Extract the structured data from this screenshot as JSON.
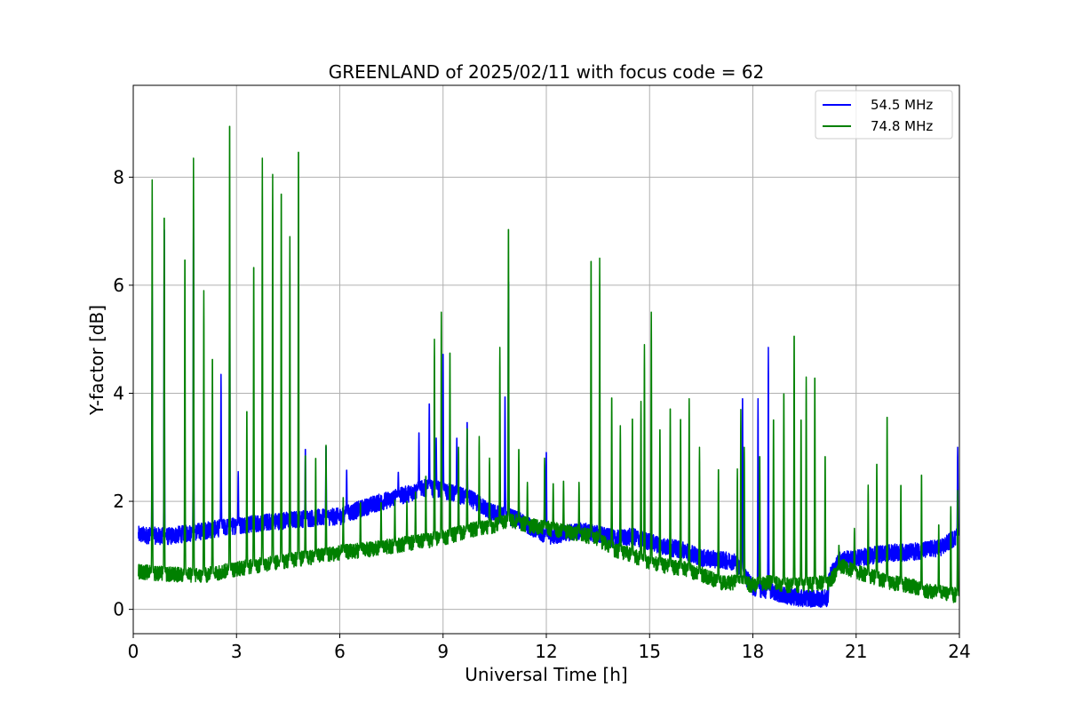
{
  "chart_data": {
    "type": "line",
    "title": "GREENLAND of 2025/02/11 with focus code = 62",
    "xlabel": "Universal Time [h]",
    "ylabel": "Y-factor [dB]",
    "xlim": [
      0,
      24
    ],
    "ylim": [
      -0.45,
      9.7
    ],
    "xticks": [
      0,
      3,
      6,
      9,
      12,
      15,
      18,
      21,
      24
    ],
    "yticks": [
      0,
      2,
      4,
      6,
      8
    ],
    "grid": true,
    "legend_position": "top-right",
    "series": [
      {
        "name": "54.5 MHz",
        "color": "#0000ff",
        "baseline": [
          [
            0.15,
            1.38
          ],
          [
            1,
            1.35
          ],
          [
            2,
            1.45
          ],
          [
            3,
            1.55
          ],
          [
            4,
            1.62
          ],
          [
            5,
            1.68
          ],
          [
            6,
            1.72
          ],
          [
            7,
            1.95
          ],
          [
            7.8,
            2.1
          ],
          [
            8.5,
            2.25
          ],
          [
            9,
            2.2
          ],
          [
            9.8,
            2.05
          ],
          [
            10.4,
            1.8
          ],
          [
            11,
            1.7
          ],
          [
            11.5,
            1.55
          ],
          [
            12,
            1.35
          ],
          [
            12.5,
            1.4
          ],
          [
            13,
            1.45
          ],
          [
            13.5,
            1.4
          ],
          [
            14,
            1.3
          ],
          [
            14.5,
            1.35
          ],
          [
            15,
            1.25
          ],
          [
            15.5,
            1.15
          ],
          [
            16,
            1.1
          ],
          [
            16.5,
            0.95
          ],
          [
            17,
            0.92
          ],
          [
            17.5,
            0.88
          ],
          [
            18,
            0.4
          ],
          [
            18.5,
            0.35
          ],
          [
            19,
            0.25
          ],
          [
            19.5,
            0.2
          ],
          [
            20.2,
            0.2
          ],
          [
            20.2,
            0.55
          ],
          [
            20.5,
            0.9
          ],
          [
            21,
            0.95
          ],
          [
            21.5,
            1.0
          ],
          [
            22,
            1.05
          ],
          [
            22.5,
            1.05
          ],
          [
            23,
            1.1
          ],
          [
            23.5,
            1.15
          ],
          [
            24,
            1.4
          ]
        ],
        "spikes": [
          [
            0.55,
            6.0
          ],
          [
            0.9,
            7.2
          ],
          [
            1.75,
            7.4
          ],
          [
            2.55,
            4.35
          ],
          [
            2.8,
            6.8
          ],
          [
            3.05,
            2.55
          ],
          [
            5.0,
            3.0
          ],
          [
            5.6,
            3.05
          ],
          [
            6.2,
            2.6
          ],
          [
            7.7,
            2.55
          ],
          [
            8.3,
            3.3
          ],
          [
            8.6,
            3.85
          ],
          [
            8.8,
            3.2
          ],
          [
            9.0,
            4.8
          ],
          [
            9.4,
            3.2
          ],
          [
            9.7,
            3.5
          ],
          [
            10.8,
            4.0
          ],
          [
            10.9,
            6.2
          ],
          [
            12.0,
            2.95
          ],
          [
            17.7,
            4.0
          ],
          [
            18.15,
            3.9
          ],
          [
            18.45,
            4.85
          ],
          [
            23.95,
            3.0
          ]
        ],
        "noise": 0.16
      },
      {
        "name": "74.8 MHz",
        "color": "#008000",
        "baseline": [
          [
            0.15,
            0.7
          ],
          [
            1,
            0.65
          ],
          [
            2,
            0.62
          ],
          [
            3,
            0.75
          ],
          [
            4,
            0.85
          ],
          [
            5,
            0.95
          ],
          [
            6,
            1.05
          ],
          [
            7,
            1.12
          ],
          [
            8,
            1.22
          ],
          [
            9,
            1.32
          ],
          [
            10,
            1.5
          ],
          [
            10.5,
            1.55
          ],
          [
            11,
            1.65
          ],
          [
            11.5,
            1.55
          ],
          [
            12,
            1.5
          ],
          [
            12.5,
            1.45
          ],
          [
            13,
            1.4
          ],
          [
            13.5,
            1.3
          ],
          [
            14,
            1.1
          ],
          [
            14.5,
            1.0
          ],
          [
            15,
            0.85
          ],
          [
            15.5,
            0.8
          ],
          [
            16,
            0.75
          ],
          [
            16.5,
            0.65
          ],
          [
            17,
            0.5
          ],
          [
            17.5,
            0.5
          ],
          [
            18,
            0.45
          ],
          [
            18.5,
            0.5
          ],
          [
            19,
            0.45
          ],
          [
            19.5,
            0.45
          ],
          [
            20.2,
            0.5
          ],
          [
            20.6,
            0.8
          ],
          [
            21,
            0.7
          ],
          [
            21.5,
            0.6
          ],
          [
            22,
            0.5
          ],
          [
            22.5,
            0.45
          ],
          [
            23,
            0.35
          ],
          [
            23.5,
            0.3
          ],
          [
            24,
            0.25
          ]
        ],
        "spikes": [
          [
            0.55,
            7.95
          ],
          [
            0.9,
            7.45
          ],
          [
            1.5,
            6.65
          ],
          [
            1.75,
            8.35
          ],
          [
            2.05,
            5.9
          ],
          [
            2.3,
            4.75
          ],
          [
            2.8,
            9.2
          ],
          [
            3.3,
            3.75
          ],
          [
            3.5,
            6.5
          ],
          [
            3.75,
            8.35
          ],
          [
            4.05,
            8.05
          ],
          [
            4.3,
            7.9
          ],
          [
            4.55,
            6.9
          ],
          [
            4.8,
            8.7
          ],
          [
            5.0,
            2.9
          ],
          [
            5.3,
            2.85
          ],
          [
            5.6,
            3.1
          ],
          [
            6.1,
            2.1
          ],
          [
            6.6,
            2.0
          ],
          [
            7.2,
            2.0
          ],
          [
            7.6,
            2.05
          ],
          [
            7.95,
            2.0
          ],
          [
            8.2,
            2.2
          ],
          [
            8.5,
            2.5
          ],
          [
            8.75,
            5.0
          ],
          [
            8.95,
            5.5
          ],
          [
            9.2,
            4.85
          ],
          [
            9.45,
            3.0
          ],
          [
            9.7,
            3.4
          ],
          [
            10.05,
            3.2
          ],
          [
            10.35,
            2.8
          ],
          [
            10.65,
            4.85
          ],
          [
            10.9,
            7.2
          ],
          [
            11.2,
            3.0
          ],
          [
            11.45,
            2.35
          ],
          [
            11.95,
            2.8
          ],
          [
            12.2,
            2.35
          ],
          [
            12.5,
            2.4
          ],
          [
            12.95,
            2.35
          ],
          [
            13.3,
            6.6
          ],
          [
            13.55,
            6.5
          ],
          [
            13.9,
            4.0
          ],
          [
            14.15,
            3.4
          ],
          [
            14.5,
            3.6
          ],
          [
            14.75,
            3.85
          ],
          [
            14.85,
            4.9
          ],
          [
            15.05,
            5.5
          ],
          [
            15.3,
            3.4
          ],
          [
            15.6,
            3.8
          ],
          [
            15.9,
            3.6
          ],
          [
            16.15,
            3.9
          ],
          [
            16.45,
            3.0
          ],
          [
            17.0,
            2.65
          ],
          [
            17.55,
            2.6
          ],
          [
            17.65,
            3.7
          ],
          [
            17.75,
            3.0
          ],
          [
            18.2,
            2.9
          ],
          [
            18.6,
            3.6
          ],
          [
            18.9,
            4.1
          ],
          [
            19.2,
            5.2
          ],
          [
            19.4,
            3.6
          ],
          [
            19.55,
            4.3
          ],
          [
            19.8,
            4.4
          ],
          [
            20.1,
            2.9
          ],
          [
            20.5,
            1.2
          ],
          [
            20.95,
            1.5
          ],
          [
            21.35,
            2.3
          ],
          [
            21.6,
            2.75
          ],
          [
            21.9,
            3.65
          ],
          [
            22.3,
            2.35
          ],
          [
            22.9,
            2.55
          ],
          [
            23.4,
            1.6
          ],
          [
            23.75,
            1.9
          ],
          [
            23.95,
            2.2
          ]
        ],
        "noise": 0.14
      }
    ]
  }
}
